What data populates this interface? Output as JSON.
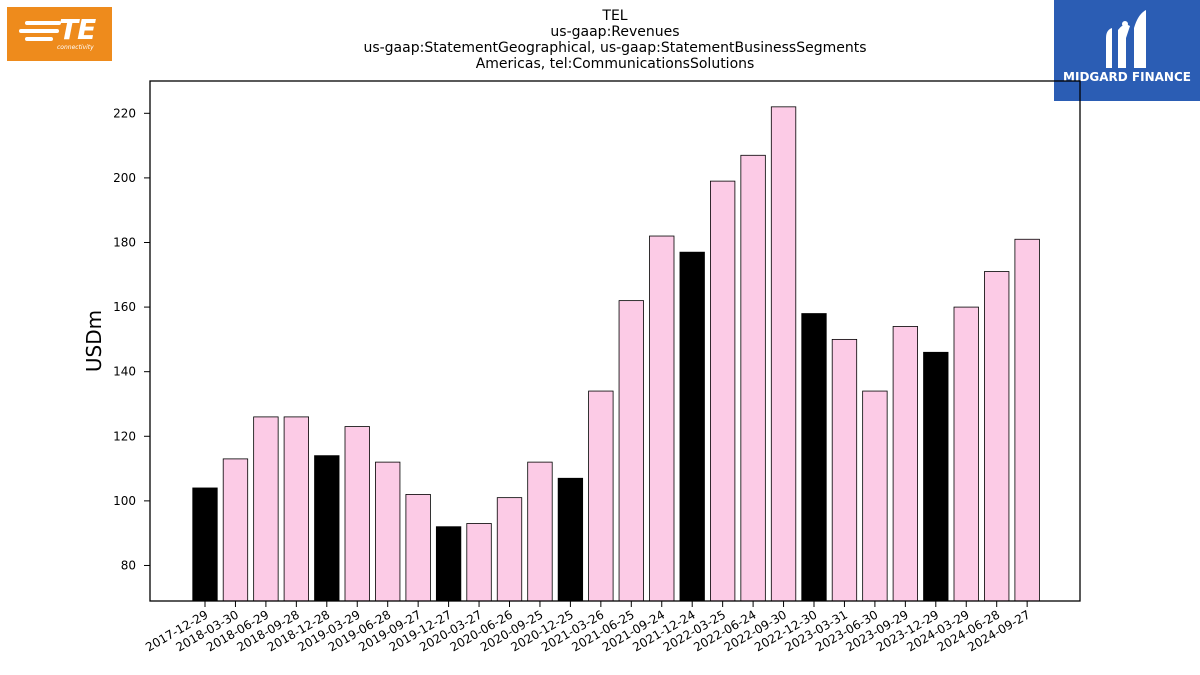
{
  "logos": {
    "left": {
      "name": "TE",
      "sub": "connectivity",
      "color": "#ee8b1c"
    },
    "right": {
      "name": "MIDGARD FINANCE",
      "color": "#2b5db4"
    }
  },
  "chart_data": {
    "type": "bar",
    "title_lines": [
      "TEL",
      "us-gaap:Revenues",
      "us-gaap:StatementGeographical, us-gaap:StatementBusinessSegments",
      "Americas, tel:CommunicationsSolutions"
    ],
    "ylabel": "USDm",
    "xlabel": "",
    "ylim": [
      69,
      230
    ],
    "yticks": [
      80,
      100,
      120,
      140,
      160,
      180,
      200,
      220
    ],
    "grid": false,
    "legend": "none",
    "colors": {
      "highlight": "#000000",
      "normal": "#fccbe6",
      "edge": "#000000"
    },
    "categories": [
      "2017-12-29",
      "2018-03-30",
      "2018-06-29",
      "2018-09-28",
      "2018-12-28",
      "2019-03-29",
      "2019-06-28",
      "2019-09-27",
      "2019-12-27",
      "2020-03-27",
      "2020-06-26",
      "2020-09-25",
      "2020-12-25",
      "2021-03-26",
      "2021-06-25",
      "2021-09-24",
      "2021-12-24",
      "2022-03-25",
      "2022-06-24",
      "2022-09-30",
      "2022-12-30",
      "2023-03-31",
      "2023-06-30",
      "2023-09-29",
      "2023-12-29",
      "2024-03-29",
      "2024-06-28",
      "2024-09-27"
    ],
    "values": [
      104,
      113,
      126,
      126,
      114,
      123,
      112,
      102,
      92,
      93,
      101,
      112,
      107,
      134,
      162,
      182,
      177,
      199,
      207,
      222,
      158,
      150,
      134,
      154,
      146,
      160,
      171,
      181
    ],
    "highlighted": [
      true,
      false,
      false,
      false,
      true,
      false,
      false,
      false,
      true,
      false,
      false,
      false,
      true,
      false,
      false,
      false,
      true,
      false,
      false,
      false,
      true,
      false,
      false,
      false,
      true,
      false,
      false,
      false
    ]
  }
}
